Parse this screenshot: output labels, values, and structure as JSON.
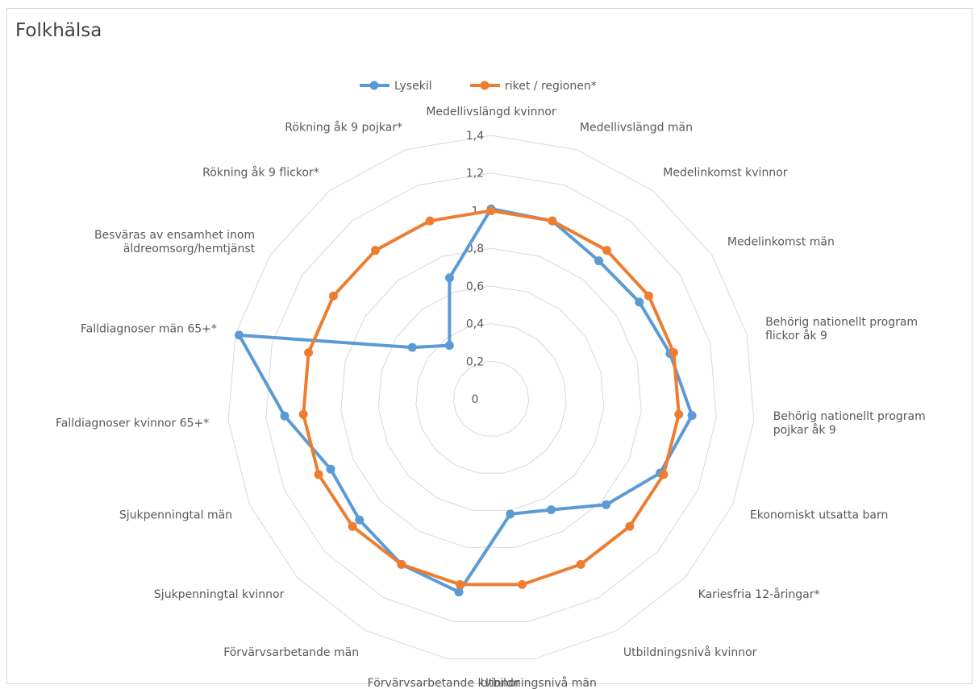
{
  "chart_data": {
    "type": "radar",
    "title": "Folkhälsa",
    "categories": [
      "Medellivslängd kvinnor",
      "Medellivslängd män",
      "Medelinkomst kvinnor",
      "Medelinkomst män",
      "Behörig nationellt program flickor åk 9",
      "Behörig nationellt program pojkar åk 9",
      "Ekonomiskt utsatta barn",
      "Kariesfria 12-åringar*",
      "Utbildningsnivå kvinnor",
      "Utbildningsnivå män",
      "Förvärvsarbetande kvinnor",
      "Förvärvsarbetande män",
      "Sjukpenningtal kvinnor",
      "Sjukpenningtal män",
      "Falldiagnoser kvinnor 65+*",
      "Falldiagnoser män 65+*",
      "Besväras av ensamhet inom äldreomsorg/hemtjänst",
      "Rökning åk 9 flickor*",
      "Rökning åk 9 pojkar*"
    ],
    "category_lines": [
      [
        "Medellivslängd kvinnor"
      ],
      [
        "Medellivslängd män"
      ],
      [
        "Medelinkomst kvinnor"
      ],
      [
        "Medelinkomst män"
      ],
      [
        "Behörig nationellt program",
        "flickor åk 9"
      ],
      [
        "Behörig nationellt program",
        "pojkar åk 9"
      ],
      [
        "Ekonomiskt utsatta barn"
      ],
      [
        "Kariesfria 12-åringar*"
      ],
      [
        "Utbildningsnivå kvinnor"
      ],
      [
        "Utbildningsnivå män"
      ],
      [
        "Förvärvsarbetande kvinnor"
      ],
      [
        "Förvärvsarbetande män"
      ],
      [
        "Sjukpenningtal kvinnor"
      ],
      [
        "Sjukpenningtal män"
      ],
      [
        "Falldiagnoser kvinnor 65+*"
      ],
      [
        "Falldiagnoser män 65+*"
      ],
      [
        "Besväras av ensamhet inom",
        "äldreomsorg/hemtjänst"
      ],
      [
        "Rökning åk 9 flickor*"
      ],
      [
        "Rökning åk 9 pojkar*"
      ]
    ],
    "series": [
      {
        "name": "Lysekil",
        "color": "#5b9bd5",
        "values": [
          1.01,
          1.0,
          0.93,
          0.94,
          0.98,
          1.07,
          0.98,
          0.83,
          0.67,
          0.62,
          1.04,
          1.0,
          0.95,
          0.93,
          1.1,
          1.38,
          0.5,
          0.36,
          0.68
        ]
      },
      {
        "name": "riket / regionen*",
        "color": "#ed7d31",
        "values": [
          1.0,
          1.0,
          1.0,
          1.0,
          1.0,
          1.0,
          1.0,
          1.0,
          1.0,
          1.0,
          1.0,
          1.0,
          1.0,
          1.0,
          1.0,
          1.0,
          1.0,
          1.0,
          1.0
        ]
      }
    ],
    "rlim": [
      0,
      1.4
    ],
    "ticks": [
      "0",
      "0,2",
      "0,4",
      "0,6",
      "0,8",
      "1",
      "1,2",
      "1,4"
    ],
    "grid": true,
    "legend": "top"
  }
}
